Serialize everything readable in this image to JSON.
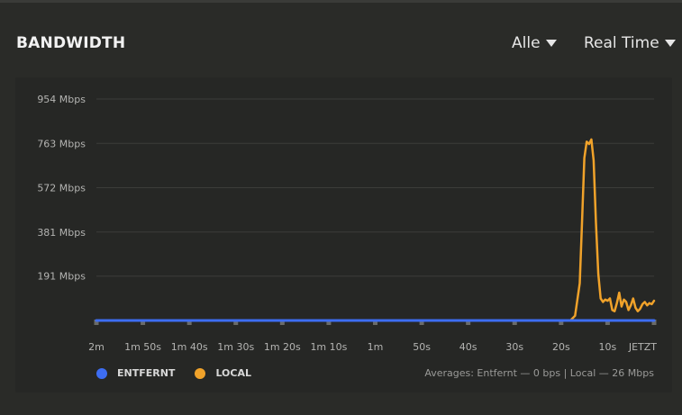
{
  "header": {
    "title": "BANDWIDTH",
    "filter_label": "Alle",
    "range_label": "Real Time"
  },
  "legend": {
    "remote_label": "ENTFERNT",
    "local_label": "LOCAL"
  },
  "averages_text": "Averages: Entfernt — 0 bps | Local — 26 Mbps",
  "colors": {
    "remote": "#3d6df2",
    "local": "#f0a22a"
  },
  "chart_data": {
    "type": "line",
    "title": "",
    "xlabel": "",
    "ylabel": "",
    "y_unit": "Mbps",
    "ylim": [
      0,
      954
    ],
    "y_ticks": [
      {
        "value": 954,
        "label": "954 Mbps"
      },
      {
        "value": 763,
        "label": "763 Mbps"
      },
      {
        "value": 572,
        "label": "572 Mbps"
      },
      {
        "value": 381,
        "label": "381 Mbps"
      },
      {
        "value": 191,
        "label": "191 Mbps"
      }
    ],
    "x_range_seconds_ago": [
      120,
      0
    ],
    "x_ticks": [
      {
        "seconds_ago": 120,
        "label": "2m"
      },
      {
        "seconds_ago": 110,
        "label": "1m 50s"
      },
      {
        "seconds_ago": 100,
        "label": "1m 40s"
      },
      {
        "seconds_ago": 90,
        "label": "1m 30s"
      },
      {
        "seconds_ago": 80,
        "label": "1m 20s"
      },
      {
        "seconds_ago": 70,
        "label": "1m 10s"
      },
      {
        "seconds_ago": 60,
        "label": "1m"
      },
      {
        "seconds_ago": 50,
        "label": "50s"
      },
      {
        "seconds_ago": 40,
        "label": "40s"
      },
      {
        "seconds_ago": 30,
        "label": "30s"
      },
      {
        "seconds_ago": 20,
        "label": "20s"
      },
      {
        "seconds_ago": 10,
        "label": "10s"
      },
      {
        "seconds_ago": 0,
        "label": "JETZT"
      }
    ],
    "grid": true,
    "legend_position": "bottom-left",
    "series": [
      {
        "name": "ENTFERNT",
        "color": "#3d6df2",
        "x": [
          120,
          100,
          80,
          60,
          40,
          20,
          0
        ],
        "y": [
          0,
          0,
          0,
          0,
          0,
          0,
          0
        ]
      },
      {
        "name": "LOCAL",
        "color": "#f0a22a",
        "x": [
          120,
          90,
          60,
          30,
          18,
          17,
          16,
          15.5,
          15,
          14.5,
          14,
          13.5,
          13,
          12.5,
          12,
          11.5,
          11,
          10.5,
          10,
          9.5,
          9,
          8.5,
          8,
          7.5,
          7,
          6.5,
          6,
          5.5,
          5,
          4.5,
          4,
          3.5,
          3,
          2.5,
          2,
          1.5,
          1,
          0.5,
          0
        ],
        "y": [
          0,
          0,
          0,
          0,
          0,
          20,
          160,
          420,
          700,
          770,
          760,
          780,
          690,
          420,
          200,
          95,
          80,
          90,
          85,
          95,
          45,
          40,
          75,
          120,
          60,
          90,
          80,
          45,
          65,
          95,
          55,
          40,
          50,
          70,
          80,
          65,
          75,
          70,
          85
        ]
      }
    ]
  }
}
